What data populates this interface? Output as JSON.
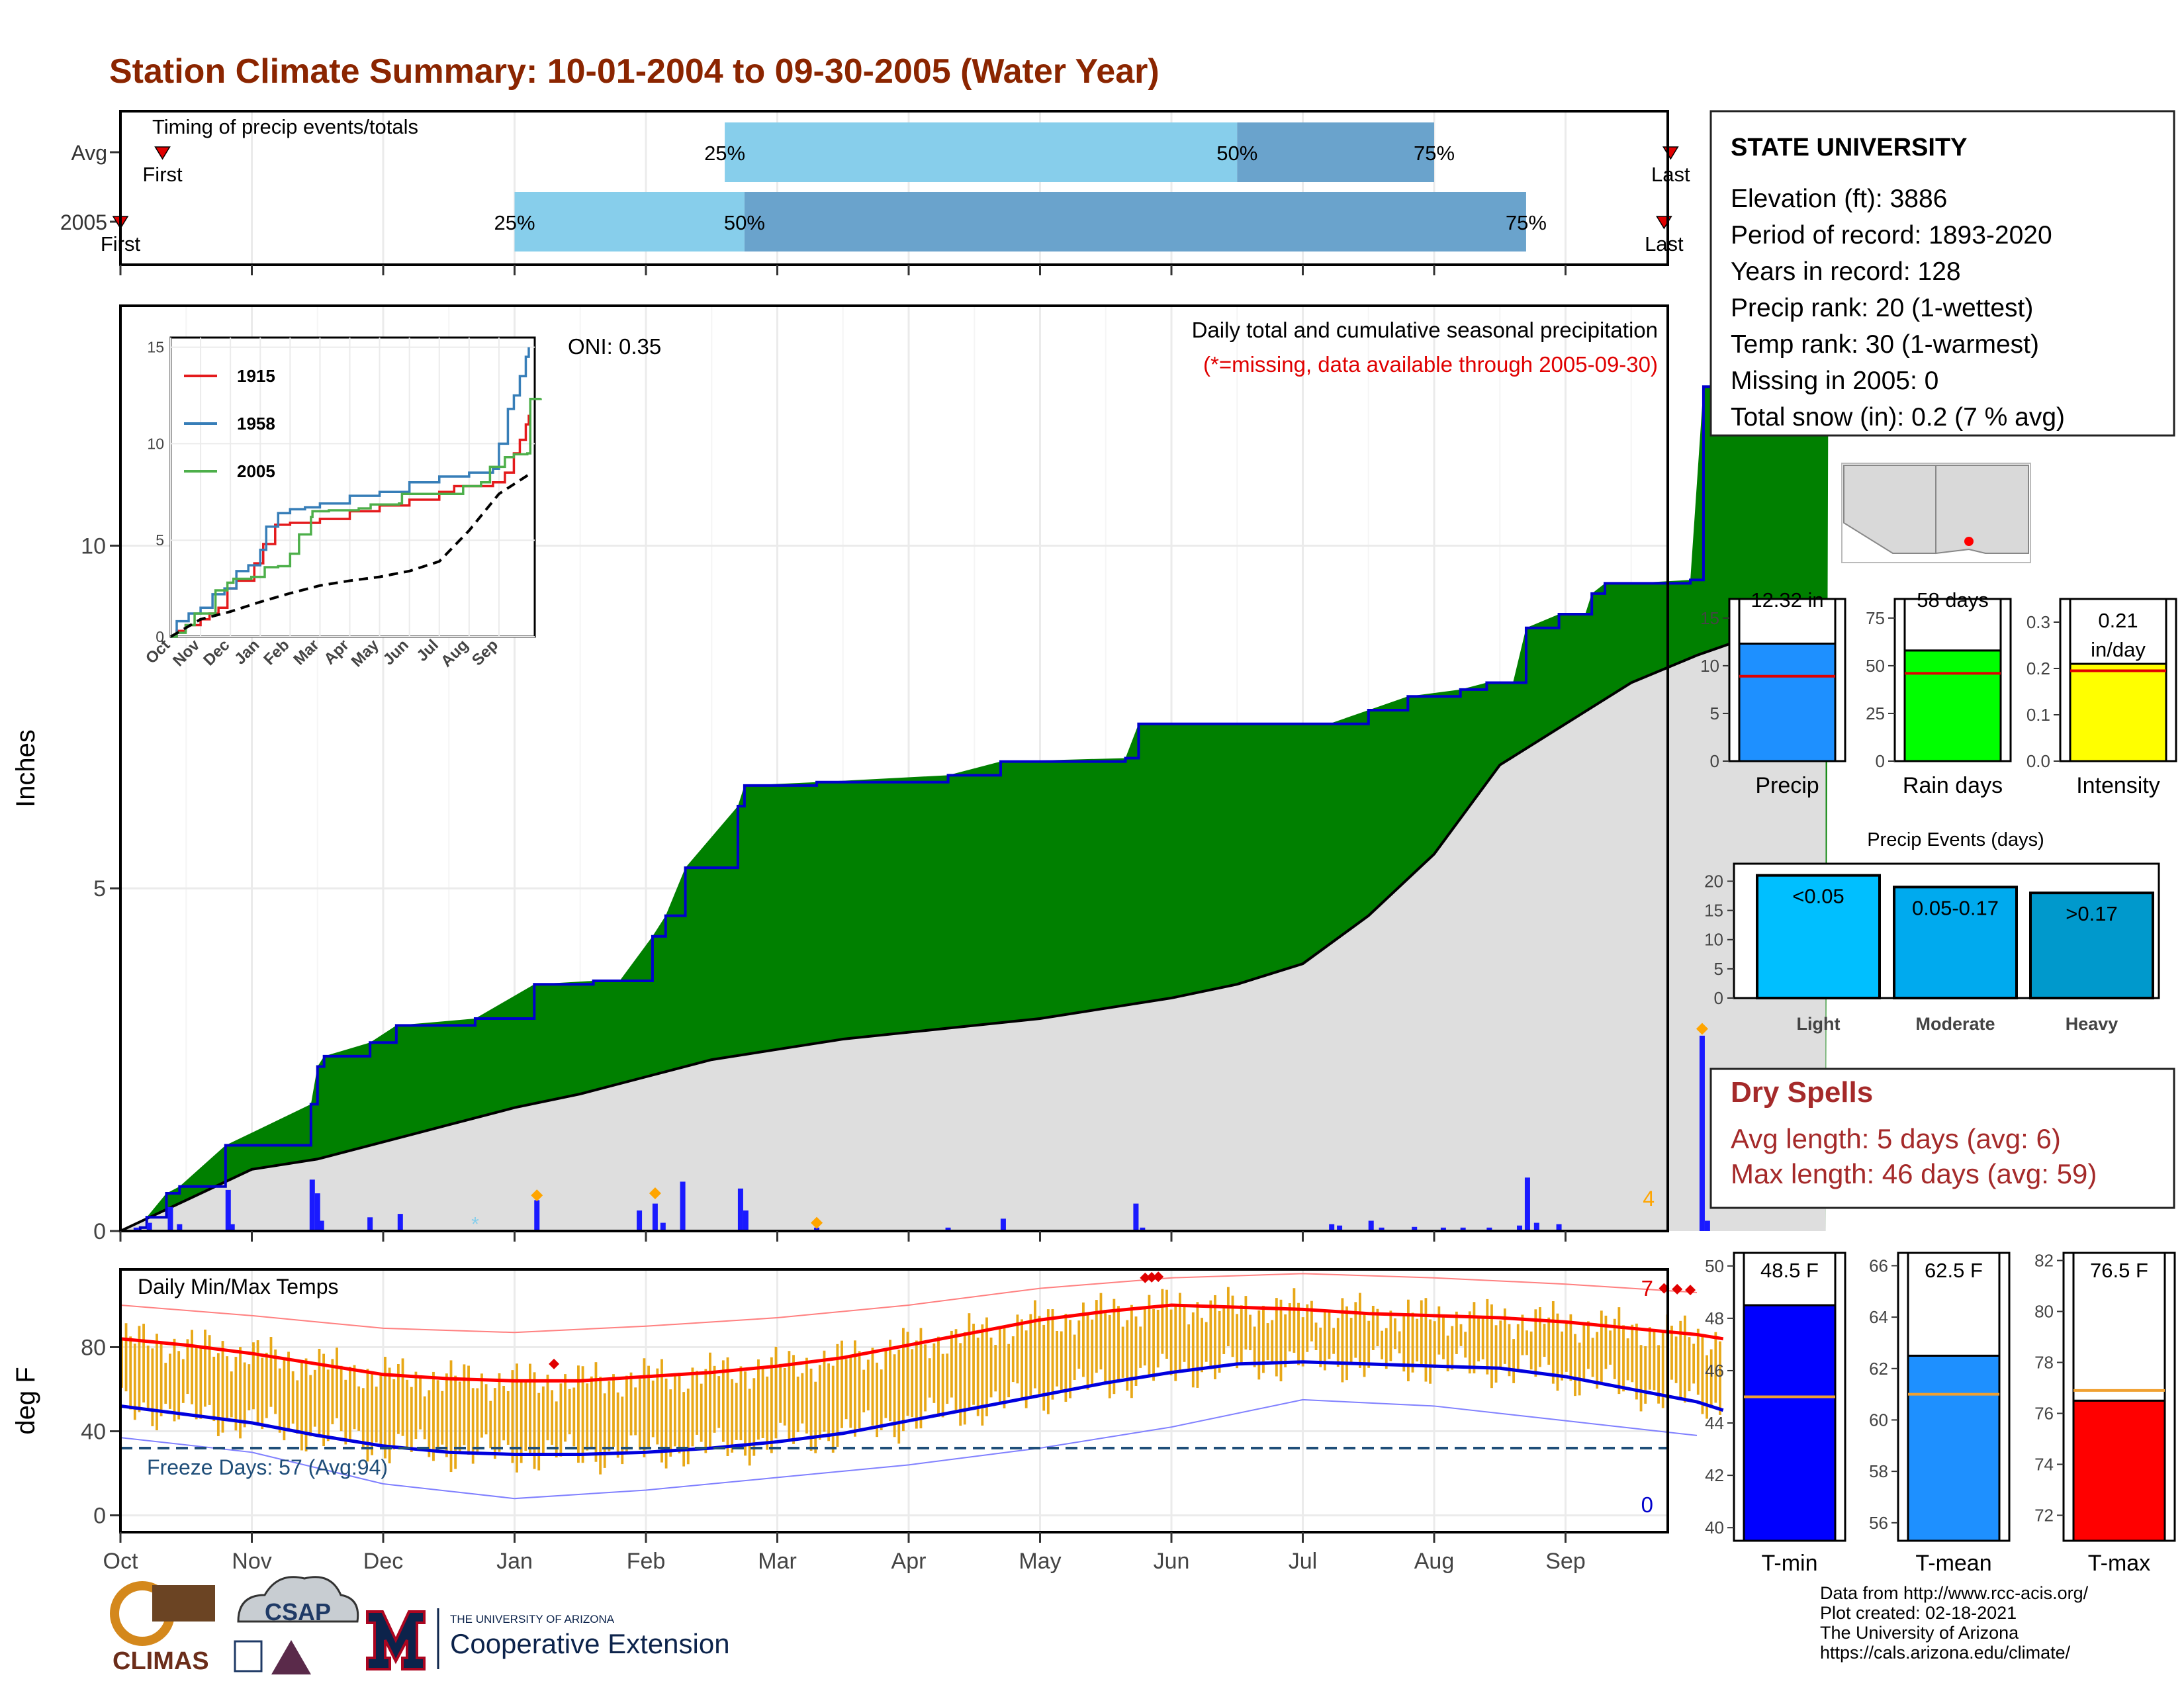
{
  "title": "Station Climate Summary: 10-01-2004 to 09-30-2005 (Water Year)",
  "colors": {
    "title": "#8b2500",
    "precip_fill": "#008000",
    "precip_outline": "#0000cc",
    "climo_fill": "#dedede",
    "daily_bar": "#1a1aff",
    "event_marker": "#ffa500",
    "temp_bar": "#e8a817",
    "tmax_line": "#ff0000",
    "tmin_line": "#0000dd",
    "freeze_line": "#1f4e79",
    "timing_light": "#87ceeb",
    "timing_dark": "#6aa3cc",
    "dry_spells": "#a52a2a"
  },
  "timing": {
    "title": "Timing of precip events/totals",
    "rows": [
      {
        "label": "Avg",
        "first_label": "First",
        "last_label": "Last",
        "first": 0.32,
        "p25": 4.6,
        "p50": 8.5,
        "p75": 10.0,
        "last": 11.8
      },
      {
        "label": "2005",
        "first_label": "First",
        "last_label": "Last",
        "first": 0.0,
        "p25": 3.0,
        "p50": 4.75,
        "p75": 10.7,
        "last": 11.75
      }
    ],
    "pct_labels": [
      "25%",
      "50%",
      "75%"
    ]
  },
  "precip": {
    "annotation": "Daily total and cumulative seasonal precipitation",
    "note": "(*=missing, data available through 2005-09-30)",
    "oni": "ONI: 0.35",
    "ylabel": "Inches",
    "yticks": [
      0,
      5,
      10
    ],
    "ymax": 13.5,
    "max_label": "4",
    "cum_2005": [
      [
        0,
        0
      ],
      [
        0.15,
        0.05
      ],
      [
        0.2,
        0.2
      ],
      [
        0.35,
        0.55
      ],
      [
        0.45,
        0.65
      ],
      [
        0.8,
        1.25
      ],
      [
        1.45,
        1.85
      ],
      [
        1.5,
        2.4
      ],
      [
        1.55,
        2.55
      ],
      [
        1.9,
        2.75
      ],
      [
        2.1,
        3.0
      ],
      [
        2.7,
        3.1
      ],
      [
        3.15,
        3.6
      ],
      [
        3.6,
        3.65
      ],
      [
        3.8,
        3.65
      ],
      [
        4.05,
        4.3
      ],
      [
        4.15,
        4.6
      ],
      [
        4.3,
        5.3
      ],
      [
        4.7,
        6.2
      ],
      [
        4.75,
        6.5
      ],
      [
        5.3,
        6.55
      ],
      [
        6.3,
        6.65
      ],
      [
        6.7,
        6.85
      ],
      [
        7.65,
        6.9
      ],
      [
        7.75,
        7.4
      ],
      [
        9.2,
        7.4
      ],
      [
        9.5,
        7.6
      ],
      [
        9.8,
        7.8
      ],
      [
        10.2,
        7.9
      ],
      [
        10.4,
        8.0
      ],
      [
        10.6,
        8.0
      ],
      [
        10.7,
        8.8
      ],
      [
        10.95,
        9.0
      ],
      [
        11.15,
        9.0
      ],
      [
        11.2,
        9.3
      ],
      [
        11.3,
        9.45
      ],
      [
        11.5,
        9.45
      ],
      [
        11.95,
        9.5
      ],
      [
        12.05,
        12.32
      ],
      [
        12.4,
        12.35
      ],
      [
        13.0,
        12.35
      ]
    ],
    "climo": [
      [
        0,
        0
      ],
      [
        0.5,
        0.45
      ],
      [
        1.0,
        0.9
      ],
      [
        1.5,
        1.05
      ],
      [
        2.0,
        1.3
      ],
      [
        2.5,
        1.55
      ],
      [
        3.0,
        1.8
      ],
      [
        3.5,
        2.0
      ],
      [
        4.0,
        2.25
      ],
      [
        4.5,
        2.5
      ],
      [
        5.0,
        2.65
      ],
      [
        5.5,
        2.8
      ],
      [
        6.0,
        2.9
      ],
      [
        6.5,
        3.0
      ],
      [
        7.0,
        3.1
      ],
      [
        7.5,
        3.25
      ],
      [
        8.0,
        3.4
      ],
      [
        8.5,
        3.6
      ],
      [
        9.0,
        3.9
      ],
      [
        9.5,
        4.6
      ],
      [
        10.0,
        5.5
      ],
      [
        10.5,
        6.8
      ],
      [
        11.0,
        7.4
      ],
      [
        11.5,
        8.0
      ],
      [
        12.0,
        8.4
      ],
      [
        12.3,
        8.6
      ]
    ],
    "daily_bars": [
      [
        0.12,
        0.05
      ],
      [
        0.22,
        0.12
      ],
      [
        0.38,
        0.35
      ],
      [
        0.45,
        0.1
      ],
      [
        0.82,
        0.6
      ],
      [
        0.85,
        0.1
      ],
      [
        1.46,
        0.75
      ],
      [
        1.5,
        0.55
      ],
      [
        1.53,
        0.15
      ],
      [
        1.9,
        0.2
      ],
      [
        2.13,
        0.25
      ],
      [
        3.17,
        0.45
      ],
      [
        3.95,
        0.3
      ],
      [
        4.07,
        0.4
      ],
      [
        4.13,
        0.12
      ],
      [
        4.28,
        0.72
      ],
      [
        4.72,
        0.62
      ],
      [
        4.76,
        0.3
      ],
      [
        5.3,
        0.05
      ],
      [
        6.3,
        0.05
      ],
      [
        6.72,
        0.18
      ],
      [
        7.73,
        0.4
      ],
      [
        7.78,
        0.05
      ],
      [
        9.22,
        0.1
      ],
      [
        9.28,
        0.08
      ],
      [
        9.52,
        0.15
      ],
      [
        9.6,
        0.05
      ],
      [
        9.85,
        0.06
      ],
      [
        10.07,
        0.05
      ],
      [
        10.22,
        0.05
      ],
      [
        10.42,
        0.05
      ],
      [
        10.65,
        0.08
      ],
      [
        10.71,
        0.78
      ],
      [
        10.78,
        0.12
      ],
      [
        10.95,
        0.1
      ],
      [
        12.04,
        2.85
      ],
      [
        12.08,
        0.15
      ]
    ],
    "event_markers": [
      [
        3.17,
        0.52
      ],
      [
        4.07,
        0.55
      ],
      [
        5.3,
        0.12
      ],
      [
        12.04,
        2.95
      ]
    ],
    "missing_markers": [
      [
        2.7,
        0.12
      ]
    ]
  },
  "inset": {
    "yticks": [
      0,
      5,
      10,
      15
    ],
    "xticks": [
      "Oct",
      "Nov",
      "Dec",
      "Jan",
      "Feb",
      "Mar",
      "Apr",
      "May",
      "Jun",
      "Jul",
      "Aug",
      "Sep"
    ],
    "series": [
      {
        "name": "1915",
        "color": "#e41a1c",
        "points": [
          [
            0,
            0
          ],
          [
            0.2,
            0.3
          ],
          [
            0.5,
            0.6
          ],
          [
            1.0,
            0.9
          ],
          [
            1.3,
            1.2
          ],
          [
            1.6,
            1.5
          ],
          [
            1.9,
            2.5
          ],
          [
            2.2,
            2.9
          ],
          [
            2.8,
            3.8
          ],
          [
            3.1,
            4.8
          ],
          [
            3.5,
            5.8
          ],
          [
            4.0,
            5.9
          ],
          [
            5.0,
            6.1
          ],
          [
            6.0,
            6.5
          ],
          [
            7.0,
            6.8
          ],
          [
            8.0,
            7.1
          ],
          [
            9.0,
            7.5
          ],
          [
            9.5,
            7.8
          ],
          [
            10.0,
            7.8
          ],
          [
            10.8,
            8.0
          ],
          [
            11.2,
            8.5
          ],
          [
            11.5,
            9.5
          ],
          [
            11.7,
            10.2
          ],
          [
            11.9,
            11.0
          ],
          [
            12.0,
            11.5
          ]
        ]
      },
      {
        "name": "1958",
        "color": "#377eb8",
        "points": [
          [
            0,
            0
          ],
          [
            0.2,
            0.8
          ],
          [
            0.6,
            1.2
          ],
          [
            1.0,
            1.5
          ],
          [
            1.4,
            2.2
          ],
          [
            1.8,
            2.5
          ],
          [
            2.2,
            3.4
          ],
          [
            2.6,
            3.7
          ],
          [
            3.0,
            4.5
          ],
          [
            3.2,
            5.7
          ],
          [
            3.6,
            6.4
          ],
          [
            4.0,
            6.6
          ],
          [
            4.5,
            6.7
          ],
          [
            5.0,
            6.9
          ],
          [
            6.0,
            7.3
          ],
          [
            7.0,
            7.5
          ],
          [
            8.0,
            8.0
          ],
          [
            9.0,
            8.3
          ],
          [
            10.0,
            8.5
          ],
          [
            10.8,
            8.7
          ],
          [
            11.0,
            10.0
          ],
          [
            11.3,
            11.8
          ],
          [
            11.5,
            12.5
          ],
          [
            11.7,
            13.5
          ],
          [
            11.9,
            14.5
          ],
          [
            12.0,
            15.0
          ]
        ]
      },
      {
        "name": "2005",
        "color": "#4daf4a",
        "points": [
          [
            0,
            0
          ],
          [
            0.2,
            0.2
          ],
          [
            0.5,
            0.6
          ],
          [
            0.8,
            1.2
          ],
          [
            1.5,
            2.4
          ],
          [
            1.9,
            2.8
          ],
          [
            2.1,
            3.0
          ],
          [
            2.7,
            3.1
          ],
          [
            3.15,
            3.6
          ],
          [
            3.6,
            3.65
          ],
          [
            4.0,
            4.3
          ],
          [
            4.3,
            5.3
          ],
          [
            4.7,
            6.2
          ],
          [
            4.75,
            6.5
          ],
          [
            5.3,
            6.55
          ],
          [
            6.3,
            6.65
          ],
          [
            6.7,
            6.85
          ],
          [
            7.65,
            6.9
          ],
          [
            7.75,
            7.4
          ],
          [
            9.2,
            7.4
          ],
          [
            9.8,
            7.8
          ],
          [
            10.4,
            8.0
          ],
          [
            10.7,
            8.8
          ],
          [
            11.2,
            9.3
          ],
          [
            11.5,
            9.45
          ],
          [
            11.95,
            9.5
          ],
          [
            12.05,
            12.32
          ],
          [
            12.4,
            12.35
          ]
        ]
      },
      {
        "name": "",
        "color": "#000000",
        "dashed": true,
        "points": [
          [
            0,
            0
          ],
          [
            1.0,
            0.9
          ],
          [
            2.0,
            1.3
          ],
          [
            3.0,
            1.8
          ],
          [
            4.0,
            2.25
          ],
          [
            5.0,
            2.65
          ],
          [
            6.0,
            2.9
          ],
          [
            7.0,
            3.1
          ],
          [
            8.0,
            3.4
          ],
          [
            9.0,
            3.9
          ],
          [
            10.0,
            5.5
          ],
          [
            11.0,
            7.4
          ],
          [
            12.0,
            8.4
          ]
        ]
      }
    ]
  },
  "temps": {
    "title": "Daily Min/Max Temps",
    "ylabel": "deg F",
    "yticks": [
      0,
      40,
      80
    ],
    "freeze_label": "Freeze Days: 57 (Avg:94)",
    "record_high_count": "7",
    "record_low_count": "0",
    "tmax_avg": [
      [
        0,
        84
      ],
      [
        0.5,
        81
      ],
      [
        1,
        77
      ],
      [
        1.5,
        72
      ],
      [
        2,
        67
      ],
      [
        2.5,
        65
      ],
      [
        3,
        64
      ],
      [
        3.5,
        64
      ],
      [
        4,
        66
      ],
      [
        4.5,
        68
      ],
      [
        5,
        71
      ],
      [
        5.5,
        75
      ],
      [
        6,
        81
      ],
      [
        6.5,
        87
      ],
      [
        7,
        93
      ],
      [
        7.5,
        97
      ],
      [
        8,
        100
      ],
      [
        8.5,
        99
      ],
      [
        9,
        98
      ],
      [
        9.5,
        96
      ],
      [
        10,
        95
      ],
      [
        10.5,
        94
      ],
      [
        11,
        92
      ],
      [
        11.5,
        89
      ],
      [
        12,
        86
      ],
      [
        12.2,
        84
      ]
    ],
    "tmin_avg": [
      [
        0,
        52
      ],
      [
        0.5,
        48
      ],
      [
        1,
        44
      ],
      [
        1.5,
        38
      ],
      [
        2,
        33
      ],
      [
        2.5,
        30
      ],
      [
        3,
        29
      ],
      [
        3.5,
        29
      ],
      [
        4,
        30
      ],
      [
        4.5,
        32
      ],
      [
        5,
        35
      ],
      [
        5.5,
        39
      ],
      [
        6,
        45
      ],
      [
        6.5,
        51
      ],
      [
        7,
        57
      ],
      [
        7.5,
        63
      ],
      [
        8,
        68
      ],
      [
        8.5,
        72
      ],
      [
        9,
        73
      ],
      [
        9.5,
        72
      ],
      [
        10,
        71
      ],
      [
        10.5,
        70
      ],
      [
        11,
        66
      ],
      [
        11.5,
        60
      ],
      [
        12,
        54
      ],
      [
        12.2,
        50
      ]
    ],
    "rec_high": [
      [
        0,
        100
      ],
      [
        1,
        95
      ],
      [
        2,
        89
      ],
      [
        3,
        87
      ],
      [
        4,
        90
      ],
      [
        5,
        94
      ],
      [
        6,
        100
      ],
      [
        7,
        108
      ],
      [
        8,
        113
      ],
      [
        9,
        115
      ],
      [
        10,
        113
      ],
      [
        11,
        110
      ],
      [
        12,
        106
      ]
    ],
    "rec_low": [
      [
        0,
        37
      ],
      [
        1,
        30
      ],
      [
        2,
        15
      ],
      [
        3,
        8
      ],
      [
        4,
        12
      ],
      [
        5,
        18
      ],
      [
        6,
        24
      ],
      [
        7,
        32
      ],
      [
        8,
        42
      ],
      [
        9,
        55
      ],
      [
        10,
        52
      ],
      [
        11,
        45
      ],
      [
        12,
        38
      ]
    ]
  },
  "x_months": [
    "Oct",
    "Nov",
    "Dec",
    "Jan",
    "Feb",
    "Mar",
    "Apr",
    "May",
    "Jun",
    "Jul",
    "Aug",
    "Sep"
  ],
  "station": {
    "name": "STATE UNIVERSITY",
    "lines": [
      "Elevation (ft): 3886",
      "Period of record: 1893-2020",
      "Years in record: 128",
      "Precip rank: 20 (1-wettest)",
      "Temp rank: 30 (1-warmest)",
      "Missing in 2005: 0",
      "Total snow (in): 0.2 (7 % avg)"
    ]
  },
  "summary_bars": [
    {
      "label": "Precip",
      "value_label": "12.32 in",
      "value": 12.32,
      "avg": 8.9,
      "ymax": 17,
      "yticks": [
        0,
        5,
        10,
        15
      ],
      "color": "#1e90ff"
    },
    {
      "label": "Rain days",
      "value_label": "58 days",
      "value": 58,
      "avg": 46,
      "ymax": 85,
      "yticks": [
        0,
        25,
        50,
        75
      ],
      "color": "#00ff00"
    },
    {
      "label": "Intensity",
      "value_label": "0.21 in/day",
      "value": 0.21,
      "avg": 0.195,
      "ymax": 0.35,
      "yticks": [
        0.0,
        0.1,
        0.2,
        0.3
      ],
      "color": "#ffff00"
    }
  ],
  "events": {
    "title": "Precip Events (days)",
    "yticks": [
      0,
      5,
      10,
      15,
      20
    ],
    "bars": [
      {
        "label": "Light",
        "value_label": "<0.05",
        "value": 21,
        "color": "#00bfff"
      },
      {
        "label": "Moderate",
        "value_label": "0.05-0.17",
        "value": 19,
        "color": "#00aaee"
      },
      {
        "label": "Heavy",
        "value_label": ">0.17",
        "value": 18,
        "color": "#0099cc"
      }
    ]
  },
  "dry_spells": {
    "title": "Dry Spells",
    "avg": "Avg length: 5 days (avg: 6)",
    "max": "Max length: 46 days (avg: 59)"
  },
  "temp_bars": [
    {
      "label": "T-min",
      "value_label": "48.5 F",
      "value": 48.5,
      "avg": 45,
      "ymin": 39.5,
      "ymax": 50.5,
      "yticks": [
        40,
        42,
        44,
        46,
        48,
        50
      ],
      "color": "#0000ff"
    },
    {
      "label": "T-mean",
      "value_label": "62.5 F",
      "value": 62.5,
      "avg": 61,
      "ymin": 55.3,
      "ymax": 66.5,
      "yticks": [
        56,
        58,
        60,
        62,
        64,
        66
      ],
      "color": "#1e90ff"
    },
    {
      "label": "T-max",
      "value_label": "76.5 F",
      "value": 76.5,
      "avg": 76.9,
      "ymin": 71.0,
      "ymax": 82.3,
      "yticks": [
        72,
        74,
        76,
        78,
        80,
        82
      ],
      "color": "#ff0000"
    }
  ],
  "logos": [
    "CLIMAS",
    "CSAP",
    "THE UNIVERSITY OF ARIZONA",
    "Cooperative Extension"
  ],
  "footer": [
    "Data from http://www.rcc-acis.org/",
    "Plot created: 02-18-2021",
    "The University of Arizona",
    "https://cals.arizona.edu/climate/"
  ]
}
